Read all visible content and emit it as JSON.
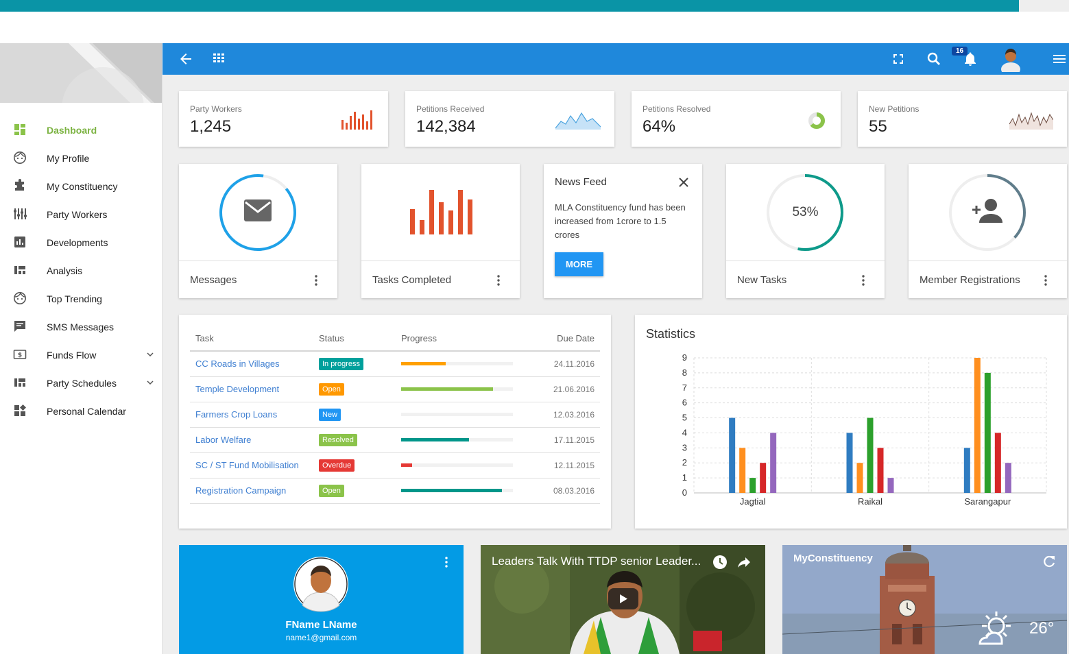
{
  "sidebar": {
    "items": [
      {
        "label": "Dashboard",
        "icon": "dashboard-icon"
      },
      {
        "label": "My Profile",
        "icon": "face-icon"
      },
      {
        "label": "My Constituency",
        "icon": "puzzle-icon"
      },
      {
        "label": "Party Workers",
        "icon": "sliders-icon"
      },
      {
        "label": "Developments",
        "icon": "bar-chart-icon"
      },
      {
        "label": "Analysis",
        "icon": "quilt-icon"
      },
      {
        "label": "Top Trending",
        "icon": "face-icon"
      },
      {
        "label": "SMS Messages",
        "icon": "message-icon"
      },
      {
        "label": "Funds Flow",
        "icon": "money-icon"
      },
      {
        "label": "Party Schedules",
        "icon": "quilt-icon"
      },
      {
        "label": "Personal Calendar",
        "icon": "widgets-icon"
      }
    ]
  },
  "toolbar": {
    "notification_count": "16"
  },
  "stats": [
    {
      "label": "Party Workers",
      "value": "1,245"
    },
    {
      "label": "Petitions Received",
      "value": "142,384"
    },
    {
      "label": "Petitions Resolved",
      "value": "64%"
    },
    {
      "label": "New Petitions",
      "value": "55"
    }
  ],
  "widgets": {
    "messages": {
      "label": "Messages"
    },
    "tasks_completed": {
      "label": "Tasks Completed"
    },
    "news": {
      "title": "News Feed",
      "body": "MLA Constituency fund has been increased from 1crore to 1.5 crores",
      "button": "MORE"
    },
    "new_tasks": {
      "label": "New Tasks",
      "percent": "53%"
    },
    "members": {
      "label": "Member Registrations"
    }
  },
  "task_table": {
    "headers": {
      "task": "Task",
      "status": "Status",
      "progress": "Progress",
      "due": "Due Date"
    },
    "rows": [
      {
        "task": "CC Roads in Villages",
        "status": "In progress",
        "status_color": "#00a09c",
        "progress": 0.4,
        "bar_color": "#ffa000",
        "due": "24.11.2016"
      },
      {
        "task": "Temple Development",
        "status": "Open",
        "status_color": "#ff9800",
        "progress": 0.82,
        "bar_color": "#8bc34a",
        "due": "21.06.2016"
      },
      {
        "task": "Farmers Crop Loans",
        "status": "New",
        "status_color": "#2196f3",
        "progress": 0.0,
        "bar_color": "#2196f3",
        "due": "12.03.2016"
      },
      {
        "task": "Labor Welfare",
        "status": "Resolved",
        "status_color": "#8bc34a",
        "progress": 0.61,
        "bar_color": "#00968a",
        "due": "17.11.2015"
      },
      {
        "task": "SC / ST Fund Mobilisation",
        "status": "Overdue",
        "status_color": "#e53935",
        "progress": 0.1,
        "bar_color": "#e53935",
        "due": "12.11.2015"
      },
      {
        "task": "Registration Campaign",
        "status": "Open",
        "status_color": "#8bc34a",
        "progress": 0.9,
        "bar_color": "#00968a",
        "due": "08.03.2016"
      }
    ]
  },
  "chart_data": {
    "type": "bar",
    "title": "Statistics",
    "categories": [
      "Jagtial",
      "Raikal",
      "Sarangapur"
    ],
    "series": [
      {
        "values": [
          5,
          4,
          3
        ],
        "color": "#2f7cc1"
      },
      {
        "values": [
          3,
          2,
          9
        ],
        "color": "#ff8f1f"
      },
      {
        "values": [
          1,
          5,
          8
        ],
        "color": "#2ca02c"
      },
      {
        "values": [
          2,
          3,
          4
        ],
        "color": "#d62728"
      },
      {
        "values": [
          4,
          1,
          2
        ],
        "color": "#9467bd"
      }
    ],
    "ylim": [
      0,
      9
    ],
    "yticks": [
      0,
      1,
      2,
      3,
      4,
      5,
      6,
      7,
      8,
      9
    ],
    "grid": true
  },
  "profile": {
    "name": "FName LName",
    "email": "name1@gmail.com"
  },
  "video": {
    "title": "Leaders Talk With TTDP senior Leader..."
  },
  "constituency": {
    "title": "MyConstituency",
    "temperature": "26°"
  }
}
